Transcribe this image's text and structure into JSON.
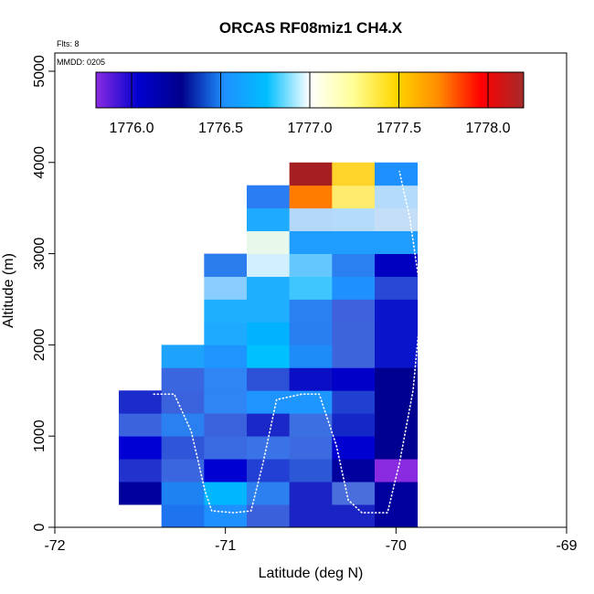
{
  "chart_data": {
    "type": "heatmap",
    "title": "ORCAS RF08miz1 CH4.X",
    "xlabel": "Latitude (deg N)",
    "ylabel": "Altitude (m)",
    "xlim": [
      -72,
      -69
    ],
    "ylim": [
      0,
      5200
    ],
    "x_ticks": [
      -72,
      -71,
      -70,
      -69
    ],
    "x_tick_labels": [
      "-72",
      "-71",
      "-70",
      "-69"
    ],
    "y_ticks": [
      0,
      1000,
      2000,
      3000,
      4000,
      5000
    ],
    "y_tick_labels": [
      "0",
      "1000",
      "2000",
      "3000",
      "4000",
      "5000"
    ],
    "annotations": {
      "flights": "Flts: 8",
      "date": "MMDD: 0205"
    },
    "colorbar": {
      "range": [
        1775.8,
        1778.2
      ],
      "ticks": [
        1776.0,
        1776.5,
        1777.0,
        1777.5,
        1778.0
      ],
      "tick_labels": [
        "1776.0",
        "1776.5",
        "1777.0",
        "1777.5",
        "1778.0"
      ],
      "divisions": [
        1776.0,
        1776.5,
        1777.0,
        1777.5,
        1778.0
      ],
      "colors": [
        "#8a2be2",
        "#0000cd",
        "#00008b",
        "#1e90ff",
        "#00bfff",
        "#ffffff",
        "#ffff99",
        "#ffd700",
        "#ff8c00",
        "#ff0000",
        "#a52a2a"
      ]
    },
    "bin_width_deg": 0.25,
    "bin_height_m": 250,
    "cells": [
      {
        "lat": -71.5,
        "alt": 250,
        "color": "#00009e"
      },
      {
        "lat": -71.5,
        "alt": 500,
        "color": "#2133cc"
      },
      {
        "lat": -71.5,
        "alt": 750,
        "color": "#0000d4"
      },
      {
        "lat": -71.5,
        "alt": 1000,
        "color": "#3a63dd"
      },
      {
        "lat": -71.5,
        "alt": 1250,
        "color": "#1b2ccb"
      },
      {
        "lat": -71.25,
        "alt": 0,
        "color": "#1e74ee"
      },
      {
        "lat": -71.25,
        "alt": 250,
        "color": "#1e82f2"
      },
      {
        "lat": -71.25,
        "alt": 500,
        "color": "#3a66e0"
      },
      {
        "lat": -71.25,
        "alt": 750,
        "color": "#2f55d8"
      },
      {
        "lat": -71.25,
        "alt": 1000,
        "color": "#2a80f0"
      },
      {
        "lat": -71.25,
        "alt": 1250,
        "color": "#3a62dd"
      },
      {
        "lat": -71.25,
        "alt": 1500,
        "color": "#3a66e0"
      },
      {
        "lat": -71.25,
        "alt": 1750,
        "color": "#1ea3fc"
      },
      {
        "lat": -71.0,
        "alt": 0,
        "color": "#1e90ff"
      },
      {
        "lat": -71.0,
        "alt": 250,
        "color": "#00b7ff"
      },
      {
        "lat": -71.0,
        "alt": 500,
        "color": "#0000d2"
      },
      {
        "lat": -71.0,
        "alt": 750,
        "color": "#3a6ae2"
      },
      {
        "lat": -71.0,
        "alt": 1000,
        "color": "#3a62dd"
      },
      {
        "lat": -71.0,
        "alt": 1250,
        "color": "#2e85f3"
      },
      {
        "lat": -71.0,
        "alt": 1500,
        "color": "#2e85f3"
      },
      {
        "lat": -71.0,
        "alt": 1750,
        "color": "#1e94ff"
      },
      {
        "lat": -71.0,
        "alt": 2000,
        "color": "#1eaaff"
      },
      {
        "lat": -71.0,
        "alt": 2250,
        "color": "#1eb0ff"
      },
      {
        "lat": -71.0,
        "alt": 2500,
        "color": "#88cdfe"
      },
      {
        "lat": -71.0,
        "alt": 2750,
        "color": "#2b7ded"
      },
      {
        "lat": -70.75,
        "alt": 0,
        "color": "#3a60dc"
      },
      {
        "lat": -70.75,
        "alt": 250,
        "color": "#2d80f0"
      },
      {
        "lat": -70.75,
        "alt": 500,
        "color": "#2240d3"
      },
      {
        "lat": -70.75,
        "alt": 750,
        "color": "#3a73e7"
      },
      {
        "lat": -70.75,
        "alt": 1000,
        "color": "#1a28c8"
      },
      {
        "lat": -70.75,
        "alt": 1250,
        "color": "#1e94ff"
      },
      {
        "lat": -70.75,
        "alt": 1500,
        "color": "#2c50d6"
      },
      {
        "lat": -70.75,
        "alt": 1750,
        "color": "#00c0ff"
      },
      {
        "lat": -70.75,
        "alt": 2000,
        "color": "#00b2ff"
      },
      {
        "lat": -70.75,
        "alt": 2250,
        "color": "#1eb0ff"
      },
      {
        "lat": -70.75,
        "alt": 2500,
        "color": "#1eb0ff"
      },
      {
        "lat": -70.75,
        "alt": 2750,
        "color": "#d2efff"
      },
      {
        "lat": -70.75,
        "alt": 3000,
        "color": "#e8f8ea"
      },
      {
        "lat": -70.75,
        "alt": 3250,
        "color": "#1eabff"
      },
      {
        "lat": -70.75,
        "alt": 3500,
        "color": "#2a7df2"
      },
      {
        "lat": -70.5,
        "alt": 0,
        "color": "#1a24c4"
      },
      {
        "lat": -70.5,
        "alt": 250,
        "color": "#1a24c4"
      },
      {
        "lat": -70.5,
        "alt": 500,
        "color": "#2c58d8"
      },
      {
        "lat": -70.5,
        "alt": 750,
        "color": "#3c6ae0"
      },
      {
        "lat": -70.5,
        "alt": 1000,
        "color": "#3c70e2"
      },
      {
        "lat": -70.5,
        "alt": 1250,
        "color": "#1e96ff"
      },
      {
        "lat": -70.5,
        "alt": 1500,
        "color": "#0a0fc5"
      },
      {
        "lat": -70.5,
        "alt": 1750,
        "color": "#1e8cf8"
      },
      {
        "lat": -70.5,
        "alt": 2000,
        "color": "#2a7ff0"
      },
      {
        "lat": -70.5,
        "alt": 2250,
        "color": "#2a80f0"
      },
      {
        "lat": -70.5,
        "alt": 2500,
        "color": "#3ec6ff"
      },
      {
        "lat": -70.5,
        "alt": 2750,
        "color": "#64c8ff"
      },
      {
        "lat": -70.5,
        "alt": 3000,
        "color": "#1e9dff"
      },
      {
        "lat": -70.5,
        "alt": 3250,
        "color": "#b3d8fa"
      },
      {
        "lat": -70.5,
        "alt": 3500,
        "color": "#ff7c00"
      },
      {
        "lat": -70.5,
        "alt": 3750,
        "color": "#a51e22"
      },
      {
        "lat": -70.25,
        "alt": 0,
        "color": "#1a24c4"
      },
      {
        "lat": -70.25,
        "alt": 250,
        "color": "#4a6fdc"
      },
      {
        "lat": -70.25,
        "alt": 500,
        "color": "#00009e"
      },
      {
        "lat": -70.25,
        "alt": 750,
        "color": "#0000d0"
      },
      {
        "lat": -70.25,
        "alt": 1000,
        "color": "#1428c8"
      },
      {
        "lat": -70.25,
        "alt": 1250,
        "color": "#2040d0"
      },
      {
        "lat": -70.25,
        "alt": 1500,
        "color": "#0000c8"
      },
      {
        "lat": -70.25,
        "alt": 1750,
        "color": "#3e64dc"
      },
      {
        "lat": -70.25,
        "alt": 2000,
        "color": "#3e64dc"
      },
      {
        "lat": -70.25,
        "alt": 2250,
        "color": "#3e62dc"
      },
      {
        "lat": -70.25,
        "alt": 2500,
        "color": "#1e90ff"
      },
      {
        "lat": -70.25,
        "alt": 2750,
        "color": "#2a80f0"
      },
      {
        "lat": -70.25,
        "alt": 3000,
        "color": "#1e9dff"
      },
      {
        "lat": -70.25,
        "alt": 3250,
        "color": "#b4dcfa"
      },
      {
        "lat": -70.25,
        "alt": 3500,
        "color": "#ffec6e"
      },
      {
        "lat": -70.25,
        "alt": 3750,
        "color": "#ffd42a"
      },
      {
        "lat": -70.0,
        "alt": 0,
        "color": "#00009e"
      },
      {
        "lat": -70.0,
        "alt": 250,
        "color": "#00009e"
      },
      {
        "lat": -70.0,
        "alt": 500,
        "color": "#8a2be2"
      },
      {
        "lat": -70.0,
        "alt": 750,
        "color": "#000090"
      },
      {
        "lat": -70.0,
        "alt": 1000,
        "color": "#000090"
      },
      {
        "lat": -70.0,
        "alt": 1250,
        "color": "#000090"
      },
      {
        "lat": -70.0,
        "alt": 1500,
        "color": "#000090"
      },
      {
        "lat": -70.0,
        "alt": 1750,
        "color": "#0a14c8"
      },
      {
        "lat": -70.0,
        "alt": 2000,
        "color": "#0a14c8"
      },
      {
        "lat": -70.0,
        "alt": 2250,
        "color": "#0a14c8"
      },
      {
        "lat": -70.0,
        "alt": 2500,
        "color": "#2848d6"
      },
      {
        "lat": -70.0,
        "alt": 2750,
        "color": "#0000c0"
      },
      {
        "lat": -70.0,
        "alt": 3000,
        "color": "#1e9dff"
      },
      {
        "lat": -70.0,
        "alt": 3250,
        "color": "#c4def8"
      },
      {
        "lat": -70.0,
        "alt": 3500,
        "color": "#b4dcfa"
      },
      {
        "lat": -70.0,
        "alt": 3750,
        "color": "#1e90ff"
      }
    ],
    "flight_track": [
      [
        -71.42,
        1460
      ],
      [
        -71.3,
        1460
      ],
      [
        -71.2,
        1050
      ],
      [
        -71.12,
        400
      ],
      [
        -71.08,
        180
      ],
      [
        -70.95,
        160
      ],
      [
        -70.85,
        180
      ],
      [
        -70.78,
        700
      ],
      [
        -70.7,
        1400
      ],
      [
        -70.55,
        1460
      ],
      [
        -70.45,
        1460
      ],
      [
        -70.35,
        900
      ],
      [
        -70.28,
        300
      ],
      [
        -70.2,
        160
      ],
      [
        -70.05,
        160
      ],
      [
        -69.98,
        700
      ],
      [
        -69.9,
        1500
      ],
      [
        -69.85,
        2500
      ],
      [
        -69.92,
        3400
      ],
      [
        -69.98,
        3900
      ]
    ]
  }
}
